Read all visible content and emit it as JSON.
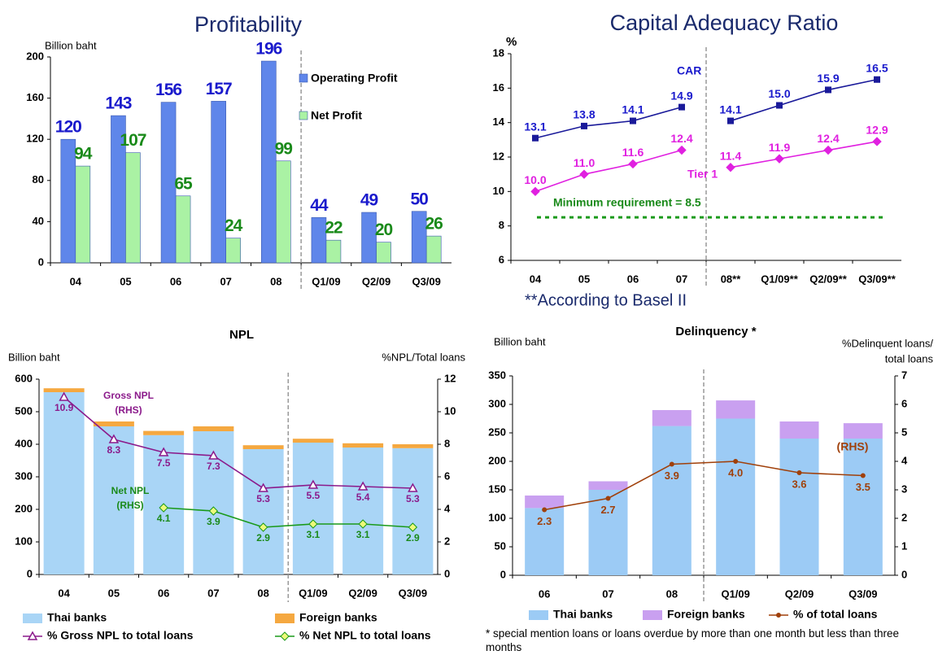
{
  "chart_data": [
    {
      "type": "bar",
      "title": "Profitability",
      "ylabel": "Billion baht",
      "categories": [
        "04",
        "05",
        "06",
        "07",
        "08",
        "Q1/09",
        "Q2/09",
        "Q3/09"
      ],
      "series": [
        {
          "name": "Operating Profit",
          "color": "#5f86ea",
          "values": [
            120,
            143,
            156,
            157,
            196,
            44,
            49,
            50
          ]
        },
        {
          "name": "Net Profit",
          "color": "#aaf2a4",
          "values": [
            94,
            107,
            65,
            24,
            99,
            22,
            20,
            26
          ]
        }
      ],
      "ylim": [
        0,
        200
      ],
      "yticks": [
        0,
        40,
        80,
        120,
        160,
        200
      ],
      "stacked": false
    },
    {
      "type": "line",
      "title": "Capital Adequacy Ratio",
      "ylabel": "%",
      "categories": [
        "04",
        "05",
        "06",
        "07",
        "08**",
        "Q1/09**",
        "Q2/09**",
        "Q3/09**"
      ],
      "series": [
        {
          "name": "CAR",
          "color": "#1a1a9a",
          "values": [
            13.1,
            13.8,
            14.1,
            14.9,
            14.1,
            15.0,
            15.9,
            16.5
          ],
          "value_labels": [
            "13.1",
            "13.8",
            "14.1",
            "14.9",
            "14.1",
            "15.0",
            "15.9",
            "16.5"
          ]
        },
        {
          "name": "Tier 1",
          "color": "#e020e0",
          "values": [
            10.0,
            11.0,
            11.6,
            12.4,
            11.4,
            11.9,
            12.4,
            12.9
          ],
          "value_labels": [
            "10.0",
            "11.0",
            "11.6",
            "12.4",
            "11.4",
            "11.9",
            "12.4",
            "12.9"
          ]
        }
      ],
      "reference": {
        "label": "Minimum requirement  = 8.5",
        "value": 8.5
      },
      "note": "**According to Basel II",
      "ylim": [
        6,
        18
      ],
      "yticks": [
        6,
        8,
        10,
        12,
        14,
        16,
        18
      ]
    },
    {
      "type": "bar",
      "title": "NPL",
      "ylabel": "Billion baht",
      "y2label": "%NPL/Total loans",
      "categories": [
        "04",
        "05",
        "06",
        "07",
        "08",
        "Q1/09",
        "Q2/09",
        "Q3/09"
      ],
      "series": [
        {
          "name": "Thai banks",
          "color": "#a9d5f6",
          "values": [
            560,
            455,
            428,
            440,
            385,
            405,
            390,
            388
          ]
        },
        {
          "name": "Foreign banks",
          "color": "#f5a840",
          "values": [
            12,
            15,
            13,
            15,
            12,
            12,
            13,
            12
          ]
        },
        {
          "name": "% Gross NPL to total loans",
          "color": "#8b1a8b",
          "type": "line",
          "axis": "y2",
          "values": [
            10.9,
            8.3,
            7.5,
            7.3,
            5.3,
            5.5,
            5.4,
            5.3
          ]
        },
        {
          "name": "% Net NPL  to total loans",
          "color": "#1a9a1a",
          "type": "line",
          "axis": "y2",
          "values": [
            null,
            null,
            4.1,
            3.9,
            2.9,
            3.1,
            3.1,
            2.9
          ]
        }
      ],
      "annotations": [
        "Gross NPL",
        "(RHS)",
        "Net NPL",
        "(RHS)"
      ],
      "ylim": [
        0,
        600
      ],
      "yticks": [
        0,
        100,
        200,
        300,
        400,
        500,
        600
      ],
      "y2lim": [
        0,
        12
      ],
      "y2ticks": [
        0,
        2,
        4,
        6,
        8,
        10,
        12
      ],
      "stacked": true
    },
    {
      "type": "bar",
      "title": "Delinquency *",
      "ylabel": "Billion baht",
      "y2label": [
        "%Delinquent loans/",
        "total loans"
      ],
      "categories": [
        "06",
        "07",
        "08",
        "Q1/09",
        "Q2/09",
        "Q3/09"
      ],
      "series": [
        {
          "name": "Thai banks",
          "color": "#9ccbf5",
          "values": [
            118,
            150,
            262,
            275,
            240,
            240
          ]
        },
        {
          "name": "Foreign banks",
          "color": "#c9a0f0",
          "values": [
            22,
            15,
            28,
            32,
            30,
            27
          ]
        },
        {
          "name": "% of total loans",
          "color": "#a0400a",
          "type": "line",
          "axis": "y2",
          "values": [
            2.3,
            2.7,
            3.9,
            4.0,
            3.6,
            3.5
          ],
          "value_labels": [
            "2.3",
            "2.7",
            "3.9",
            "4.0",
            "3.6",
            "3.5"
          ]
        }
      ],
      "annotations": [
        "(RHS)"
      ],
      "footnote": "* special mention loans or loans overdue by more than one month but less than three months",
      "ylim": [
        0,
        350
      ],
      "yticks": [
        0,
        50,
        100,
        150,
        200,
        250,
        300,
        350
      ],
      "y2lim": [
        0,
        7
      ],
      "y2ticks": [
        0,
        1,
        2,
        3,
        4,
        5,
        6,
        7
      ],
      "stacked": true
    }
  ]
}
